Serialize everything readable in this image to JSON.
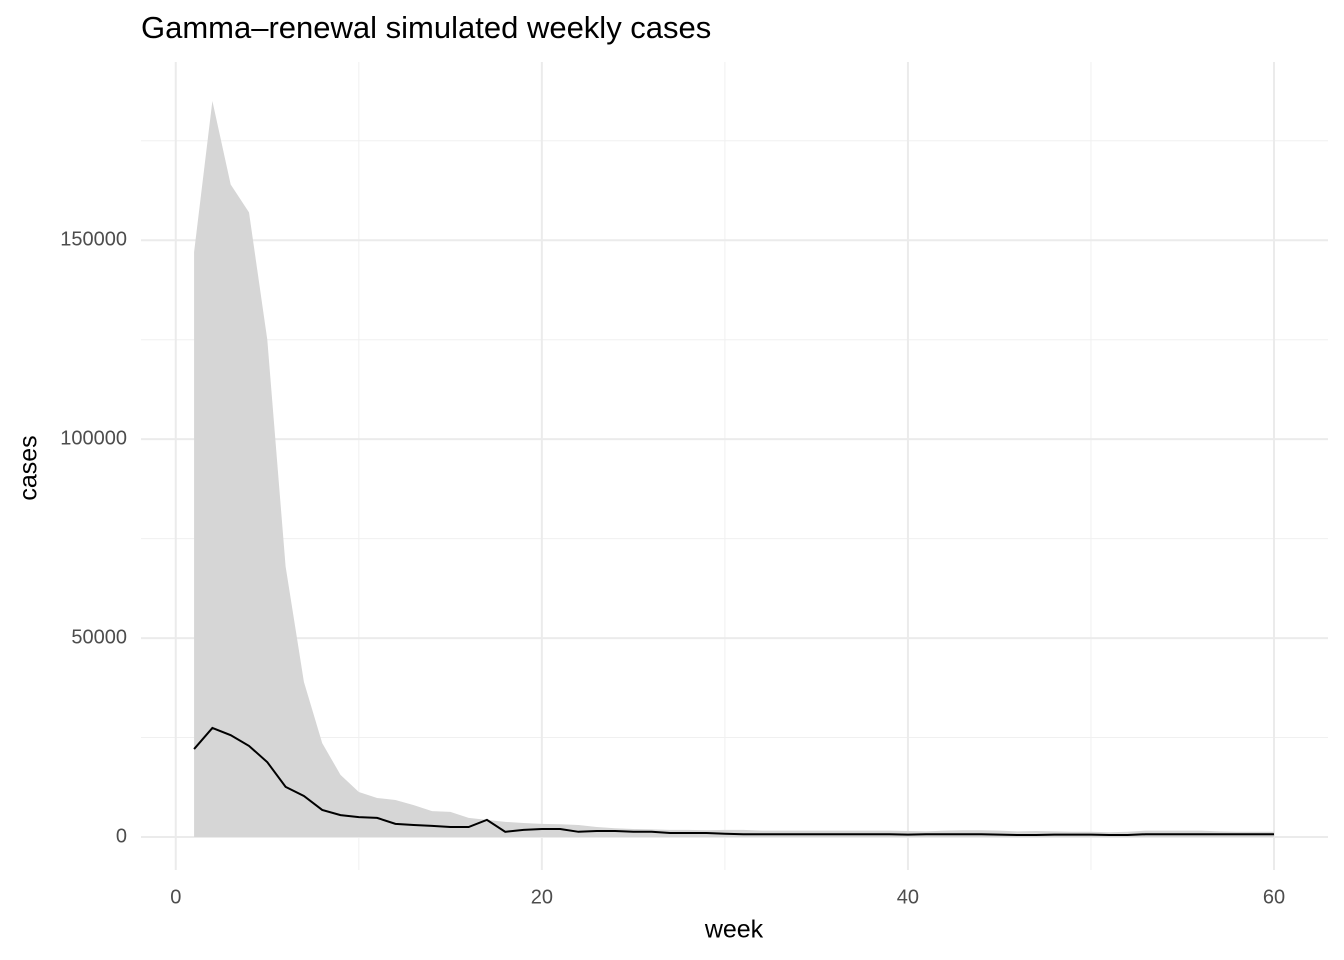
{
  "chart_data": {
    "type": "ribbon-line",
    "title": "Gamma–renewal simulated weekly cases",
    "x_label": "week",
    "y_label": "cases",
    "x": [
      1,
      2,
      3,
      4,
      5,
      6,
      7,
      8,
      9,
      10,
      11,
      12,
      13,
      14,
      15,
      16,
      17,
      18,
      19,
      20,
      21,
      22,
      23,
      24,
      25,
      26,
      27,
      28,
      29,
      30,
      31,
      32,
      33,
      34,
      35,
      36,
      37,
      38,
      39,
      40,
      41,
      42,
      43,
      44,
      45,
      46,
      47,
      48,
      49,
      50,
      51,
      52,
      53,
      54,
      55,
      56,
      57,
      58,
      59,
      60
    ],
    "ribbon": {
      "color": "#d6d6d6",
      "values": [
        147000,
        185000,
        164000,
        157000,
        125000,
        68000,
        39000,
        23600,
        15600,
        11300,
        9800,
        9300,
        8000,
        6500,
        6300,
        4800,
        4300,
        3800,
        3500,
        3300,
        3200,
        3000,
        2500,
        2200,
        2000,
        1900,
        1800,
        1800,
        1700,
        1800,
        1800,
        1600,
        1600,
        1600,
        1600,
        1600,
        1600,
        1600,
        1600,
        1500,
        1400,
        1600,
        1700,
        1700,
        1600,
        1400,
        1500,
        1400,
        1300,
        1300,
        1200,
        1300,
        1600,
        1600,
        1600,
        1600,
        1400,
        1300,
        1300,
        1300
      ]
    },
    "line": {
      "color": "#000000",
      "values": [
        22100,
        27400,
        25600,
        22900,
        18800,
        12600,
        10300,
        6800,
        5500,
        5000,
        4800,
        3300,
        3000,
        2800,
        2500,
        2500,
        4300,
        1300,
        1800,
        2000,
        2000,
        1300,
        1500,
        1500,
        1300,
        1300,
        1000,
        1000,
        1000,
        800,
        700,
        700,
        700,
        700,
        700,
        700,
        700,
        700,
        700,
        600,
        700,
        700,
        700,
        700,
        600,
        500,
        500,
        600,
        600,
        600,
        500,
        500,
        700,
        700,
        700,
        700,
        700,
        700,
        700,
        700
      ]
    },
    "xlim": [
      -1.9,
      62.95
    ],
    "ylim": [
      -8300,
      194800
    ],
    "xticks": [
      0,
      20,
      40,
      60
    ],
    "yticks": [
      0,
      50000,
      100000,
      150000
    ],
    "grid": true,
    "minor_grid": true
  }
}
